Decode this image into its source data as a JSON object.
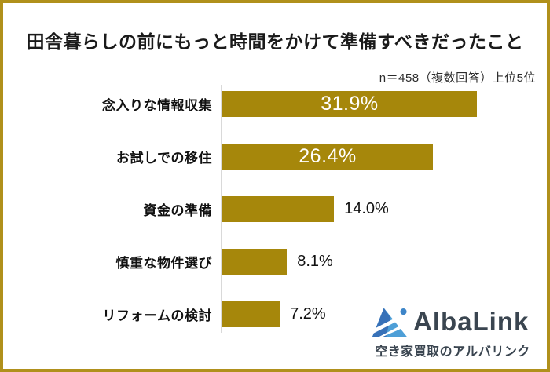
{
  "title": "田舎暮らしの前にもっと時間をかけて準備すべきだったこと",
  "subtitle": "n＝458（複数回答）上位5位",
  "chart_data": {
    "type": "bar",
    "orientation": "horizontal",
    "title": "田舎暮らしの前にもっと時間をかけて準備すべきだったこと",
    "note": "n＝458（複数回答）上位5位",
    "categories": [
      "念入りな情報収集",
      "お試しでの移住",
      "資金の準備",
      "慎重な物件選び",
      "リフォームの検討"
    ],
    "values": [
      31.9,
      26.4,
      14.0,
      8.1,
      7.2
    ],
    "value_labels": [
      "31.9%",
      "26.4%",
      "14.0%",
      "8.1%",
      "7.2%"
    ],
    "label_inside": [
      true,
      true,
      false,
      false,
      false
    ],
    "bar_color": "#A6870B",
    "axis_color": "#D9D9D9",
    "xlim": [
      0,
      40
    ],
    "grid": false,
    "legend": false
  },
  "frame": {
    "border_color": "#B0901B"
  },
  "logo": {
    "brand": "AlbaLink",
    "tagline": "空き家買取のアルバリンク",
    "text_color": "#3A4550",
    "blue_dark": "#3771B8",
    "blue_light": "#4E9FD7"
  }
}
